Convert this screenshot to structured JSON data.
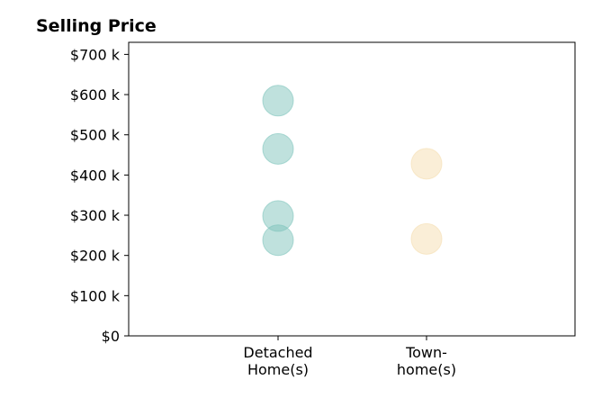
{
  "chart_data": {
    "type": "scatter",
    "title": "Selling Price",
    "xlabel": "",
    "ylabel": "",
    "categories": [
      [
        "Detached",
        "Home(s)"
      ],
      [
        "Town-",
        "home(s)"
      ]
    ],
    "ylim": [
      0,
      730000
    ],
    "yticks": [
      0,
      100000,
      200000,
      300000,
      400000,
      500000,
      600000,
      700000
    ],
    "ytick_labels": [
      "$0",
      "$100 k",
      "$200 k",
      "$300 k",
      "$400 k",
      "$500 k",
      "$600 k",
      "$700 k"
    ],
    "grid": false,
    "legend": "none",
    "series": [
      {
        "category_index": 0,
        "color": "#7fc4bc",
        "values": [
          585000,
          465000,
          298000,
          238000
        ]
      },
      {
        "category_index": 1,
        "color": "#f5deb0",
        "values": [
          428000,
          241000
        ]
      }
    ]
  }
}
